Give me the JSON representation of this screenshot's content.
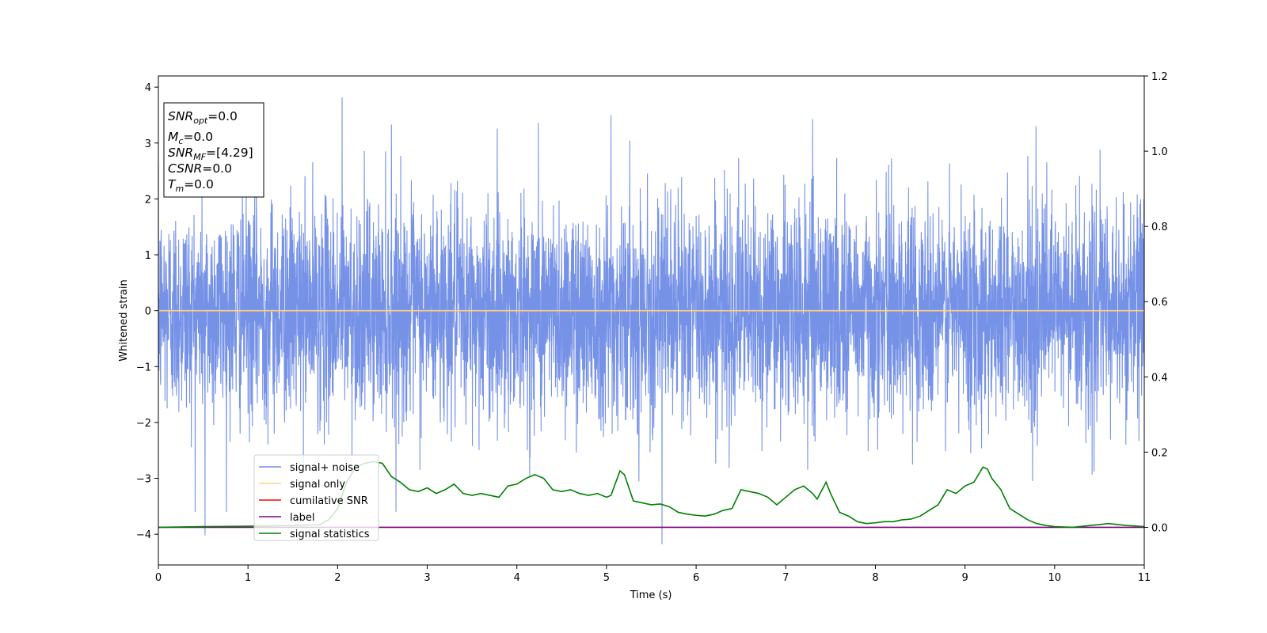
{
  "chart_data": {
    "type": "line",
    "xlabel": "Time (s)",
    "ylabel": "Whitened strain",
    "xlim": [
      0,
      11
    ],
    "ylim_left": [
      -4.55,
      4.2
    ],
    "ylim_right": [
      -0.1,
      1.2
    ],
    "x_ticks": [
      "0",
      "1",
      "2",
      "3",
      "4",
      "5",
      "6",
      "7",
      "8",
      "9",
      "10",
      "11"
    ],
    "y_ticks_left": [
      "−4",
      "−3",
      "−2",
      "−1",
      "0",
      "1",
      "2",
      "3",
      "4"
    ],
    "y_ticks_right": [
      "0.0",
      "0.2",
      "0.4",
      "0.6",
      "0.8",
      "1.0",
      "1.2"
    ],
    "y_tick_values_left": [
      -4,
      -3,
      -2,
      -1,
      0,
      1,
      2,
      3,
      4
    ],
    "y_tick_values_right": [
      0.0,
      0.2,
      0.4,
      0.6,
      0.8,
      1.0,
      1.2
    ],
    "info_box": {
      "line1_main": "SNR",
      "line1_sub": "opt",
      "line1_value": "=0.0",
      "line2_main": "M",
      "line2_sub": "c",
      "line2_value": "=0.0",
      "line3_main": "SNR",
      "line3_sub": "MF",
      "line3_value": "=[4.29]",
      "line4_main": "CSNR",
      "line4_value": "=0.0",
      "line5_main": "T",
      "line5_sub": "m",
      "line5_value": "=0.0"
    },
    "legend": {
      "placement": "lower-left",
      "entries": [
        {
          "label": "signal+ noise",
          "color": "#6f8ce6"
        },
        {
          "label": "signal only",
          "color": "#ffd27f"
        },
        {
          "label": "cumilative SNR",
          "color": "#ff0000"
        },
        {
          "label": "label",
          "color": "#800080"
        },
        {
          "label": "signal statistics",
          "color": "#008000"
        }
      ]
    },
    "series": [
      {
        "name": "signal+ noise",
        "axis": "left",
        "color": "#6f8ce6",
        "style": "dense noise, sample rate ~4096 Hz, std ~0.95, range about -4.2 to 3.8",
        "notable_extremes": [
          [
            0.52,
            -4.02
          ],
          [
            2.05,
            3.82
          ],
          [
            5.05,
            3.5
          ],
          [
            5.62,
            -4.18
          ],
          [
            2.6,
            3.33
          ],
          [
            4.24,
            3.36
          ],
          [
            7.3,
            3.43
          ]
        ]
      },
      {
        "name": "signal only",
        "axis": "left",
        "color": "#ffd27f",
        "x": [
          0,
          11
        ],
        "y": [
          0,
          0
        ]
      },
      {
        "name": "label",
        "axis": "right",
        "color": "#800080",
        "x": [
          0,
          11
        ],
        "y": [
          0,
          0
        ]
      },
      {
        "name": "signal statistics",
        "axis": "right",
        "color": "#008000",
        "x": [
          0,
          0.5,
          1.0,
          1.5,
          1.8,
          1.9,
          2.0,
          2.1,
          2.2,
          2.3,
          2.4,
          2.5,
          2.6,
          2.7,
          2.8,
          2.9,
          3.0,
          3.1,
          3.2,
          3.3,
          3.4,
          3.5,
          3.6,
          3.7,
          3.8,
          3.9,
          4.0,
          4.1,
          4.2,
          4.3,
          4.4,
          4.5,
          4.6,
          4.7,
          4.8,
          4.9,
          5.0,
          5.05,
          5.15,
          5.2,
          5.3,
          5.4,
          5.5,
          5.6,
          5.7,
          5.8,
          5.9,
          6.0,
          6.1,
          6.2,
          6.3,
          6.4,
          6.5,
          6.6,
          6.7,
          6.8,
          6.9,
          7.0,
          7.1,
          7.2,
          7.3,
          7.35,
          7.45,
          7.5,
          7.6,
          7.7,
          7.8,
          7.9,
          8.0,
          8.1,
          8.2,
          8.3,
          8.4,
          8.5,
          8.6,
          8.7,
          8.8,
          8.9,
          9.0,
          9.1,
          9.2,
          9.25,
          9.3,
          9.4,
          9.5,
          9.6,
          9.7,
          9.8,
          9.9,
          10.0,
          10.2,
          10.4,
          10.6,
          10.8,
          11.0
        ],
        "y": [
          0.0,
          0.002,
          0.003,
          0.005,
          0.007,
          0.02,
          0.05,
          0.12,
          0.16,
          0.17,
          0.175,
          0.17,
          0.135,
          0.12,
          0.1,
          0.095,
          0.105,
          0.09,
          0.1,
          0.115,
          0.09,
          0.085,
          0.09,
          0.085,
          0.08,
          0.11,
          0.115,
          0.13,
          0.14,
          0.13,
          0.1,
          0.095,
          0.1,
          0.09,
          0.085,
          0.09,
          0.08,
          0.085,
          0.15,
          0.14,
          0.07,
          0.065,
          0.06,
          0.062,
          0.055,
          0.04,
          0.035,
          0.032,
          0.03,
          0.035,
          0.045,
          0.05,
          0.1,
          0.095,
          0.09,
          0.08,
          0.06,
          0.08,
          0.1,
          0.11,
          0.09,
          0.075,
          0.12,
          0.09,
          0.04,
          0.03,
          0.015,
          0.01,
          0.012,
          0.015,
          0.015,
          0.02,
          0.022,
          0.03,
          0.045,
          0.06,
          0.1,
          0.09,
          0.11,
          0.12,
          0.16,
          0.155,
          0.13,
          0.1,
          0.05,
          0.035,
          0.02,
          0.01,
          0.005,
          0.002,
          0.0,
          0.005,
          0.01,
          0.005,
          0.002
        ]
      }
    ]
  }
}
